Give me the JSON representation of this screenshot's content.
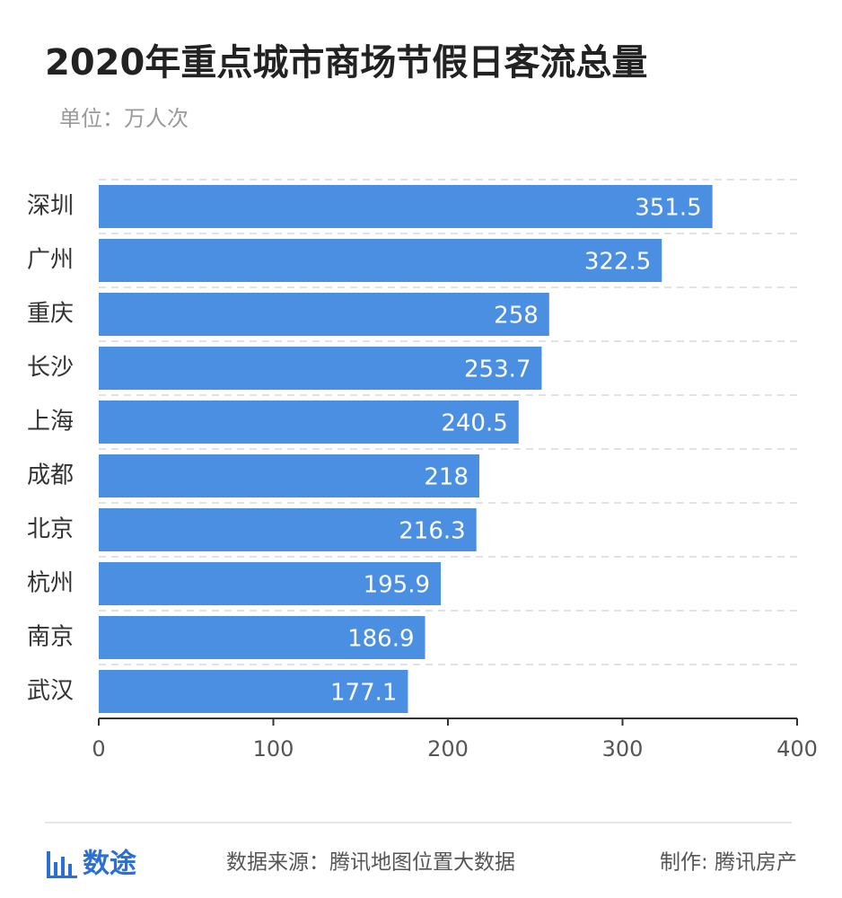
{
  "chart_data": {
    "type": "bar",
    "orientation": "horizontal",
    "title": "2020年重点城市商场节假日客流总量",
    "subtitle": "单位：万人次",
    "categories": [
      "深圳",
      "广州",
      "重庆",
      "长沙",
      "上海",
      "成都",
      "北京",
      "杭州",
      "南京",
      "武汉"
    ],
    "values": [
      351.5,
      322.5,
      258,
      253.7,
      240.5,
      218,
      216.3,
      195.9,
      186.9,
      177.1
    ],
    "color": "#4a8fe2",
    "xlim": [
      0,
      400
    ],
    "xticks": [
      0,
      100,
      200,
      300,
      400
    ],
    "grid": true
  },
  "footer": {
    "brand": "数途",
    "source": "数据来源：腾讯地图位置大数据",
    "credit": "制作: 腾讯房产"
  }
}
